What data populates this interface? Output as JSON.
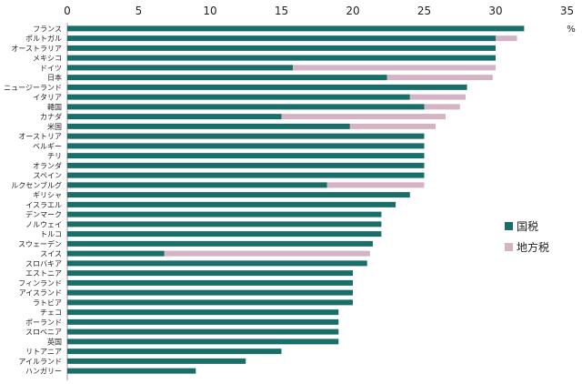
{
  "chart_data": {
    "type": "bar",
    "orientation": "horizontal",
    "stacked": true,
    "title": "",
    "unit": "%",
    "xlim": [
      0,
      35
    ],
    "xticks": [
      "0",
      "5",
      "10",
      "15",
      "20",
      "25",
      "30",
      "35"
    ],
    "grid": false,
    "legend_position": "right",
    "categories": [
      "フランス",
      "ポルトガル",
      "オーストラリア",
      "メキシコ",
      "ドイツ",
      "日本",
      "ニュージーランド",
      "イタリア",
      "韓国",
      "カナダ",
      "米国",
      "オーストリア",
      "ベルギー",
      "チリ",
      "オランダ",
      "スペイン",
      "ルクセンブルグ",
      "ギリシャ",
      "イスラエル",
      "デンマーク",
      "ノルウェイ",
      "トルコ",
      "スウェーデン",
      "スイス",
      "スロバキア",
      "エストニア",
      "フィンランド",
      "アイスランド",
      "ラトビア",
      "チェコ",
      "ポーランド",
      "スロベニア",
      "英国",
      "リトアニア",
      "アイルランド",
      "ハンガリー"
    ],
    "series": [
      {
        "name": "国税",
        "color": "#1a6e6a",
        "values": [
          32.0,
          30.0,
          30.0,
          30.0,
          15.8,
          22.4,
          28.0,
          24.0,
          25.0,
          15.0,
          19.8,
          25.0,
          25.0,
          25.0,
          25.0,
          25.0,
          18.2,
          24.0,
          23.0,
          22.0,
          22.0,
          22.0,
          21.4,
          6.8,
          21.0,
          20.0,
          20.0,
          20.0,
          20.0,
          19.0,
          19.0,
          19.0,
          19.0,
          15.0,
          12.5,
          9.0
        ]
      },
      {
        "name": "地方税",
        "color": "#d4b4c4",
        "values": [
          0.0,
          1.5,
          0.0,
          0.0,
          14.2,
          7.4,
          0.0,
          3.9,
          2.5,
          11.5,
          6.0,
          0.0,
          0.0,
          0.0,
          0.0,
          0.0,
          6.8,
          0.0,
          0.0,
          0.0,
          0.0,
          0.0,
          0.0,
          14.4,
          0.0,
          0.0,
          0.0,
          0.0,
          0.0,
          0.0,
          0.0,
          0.0,
          0.0,
          0.0,
          0.0,
          0.0
        ]
      }
    ]
  }
}
